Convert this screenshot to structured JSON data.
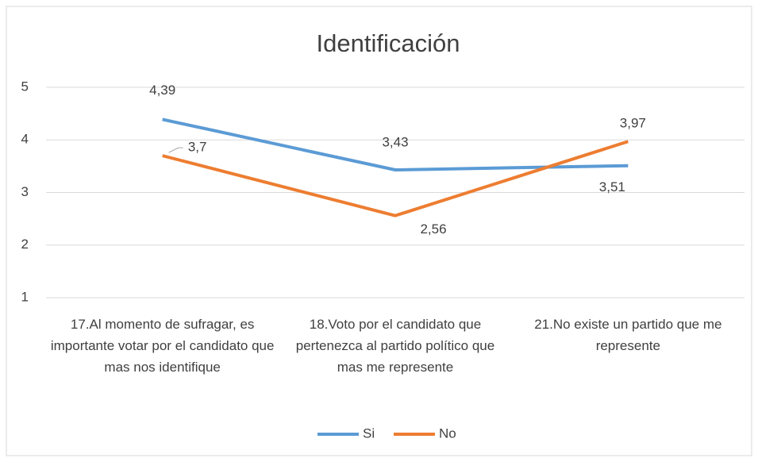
{
  "chart_data": {
    "type": "line",
    "title": "Identificación",
    "categories": [
      "17.Al momento de sufragar, es importante votar por el candidato que mas nos identifique",
      "18.Voto por el candidato que pertenezca al partido político que mas me represente",
      "21.No existe un partido que me represente"
    ],
    "series": [
      {
        "name": "Si",
        "color": "#5b9bd5",
        "values": [
          4.39,
          3.43,
          3.51
        ],
        "value_labels": [
          "4,39",
          "3,43",
          "3,51"
        ]
      },
      {
        "name": "No",
        "color": "#ed7d31",
        "values": [
          3.7,
          2.56,
          3.97
        ],
        "value_labels": [
          "3,7",
          "2,56",
          "3,97"
        ]
      }
    ],
    "ylim": [
      1,
      5
    ],
    "yticks": [
      1,
      2,
      3,
      4,
      5
    ],
    "grid": true,
    "legend": "bottom"
  }
}
